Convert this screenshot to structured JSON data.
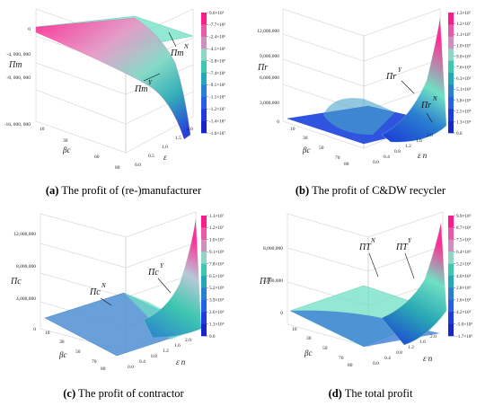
{
  "chart_data": [
    {
      "type": "surface3d",
      "panel_letter": "(a)",
      "caption": "The profit of (re-)manufacturer",
      "z_axis_label": "Πm",
      "x_axis_label": "βc",
      "y_axis_label": "ε",
      "z_ticks": [
        "0",
        "-4, 000, 000",
        "-8, 000, 000",
        "-16, 000, 000"
      ],
      "x_ticks": [
        "10",
        "20",
        "30",
        "40",
        "50",
        "60",
        "70",
        "80"
      ],
      "y_ticks": [
        "0.0",
        "0.5",
        "1.0",
        "1.5",
        "2.0"
      ],
      "colorbar": {
        "ticks": [
          "9.0×10⁵",
          "-7.7×10⁵",
          "-2.4×10⁶",
          "-4.1×10⁶",
          "-5.8×10⁶",
          "-7.4×10⁶",
          "-9.1×10⁶",
          "-1.1×10⁷",
          "-1.2×10⁷",
          "-1.4×10⁷",
          "-1.6×10⁷"
        ],
        "colors_top_to_bottom": [
          "#ff1a8c",
          "#e85aa6",
          "#cf8fbf",
          "#8fd6c6",
          "#3ec7b0",
          "#24a7b8",
          "#2a7fd0",
          "#2b5ee6",
          "#1f3be0",
          "#1726c8"
        ]
      },
      "annotations": [
        {
          "label": "Πm",
          "superscript": "N"
        },
        {
          "label": "Πm",
          "superscript": "Y"
        }
      ]
    },
    {
      "type": "surface3d",
      "panel_letter": "(b)",
      "caption": "The profit of C&DW recycler",
      "z_axis_label": "Πr",
      "x_axis_label": "βc",
      "y_axis_label": "ε n",
      "z_ticks": [
        "12,000,000",
        "9,000,000",
        "6,000,000",
        "3,000,000",
        "0"
      ],
      "x_ticks": [
        "10",
        "20",
        "30",
        "40",
        "50",
        "60",
        "70",
        "80"
      ],
      "y_ticks": [
        "0.0",
        "0.2",
        "0.4",
        "0.6",
        "0.8",
        "1.0",
        "1.2",
        "1.4",
        "1.6",
        "1.8",
        "2.0"
      ],
      "colorbar": {
        "ticks": [
          "1.3×10⁷",
          "1.2×10⁷",
          "1.1×10⁷",
          "1.0×10⁷",
          "9.0×10⁶",
          "7.6×10⁶",
          "6.3×10⁶",
          "5.1×10⁶",
          "3.8×10⁶",
          "2.5×10⁶",
          "1.3×10⁶",
          "0.0"
        ],
        "colors_top_to_bottom": [
          "#ff1a8c",
          "#e85aa6",
          "#cf8fbf",
          "#8fd6c6",
          "#3ec7b0",
          "#24a7b8",
          "#2a7fd0",
          "#2b5ee6",
          "#1f3be0",
          "#1726c8"
        ]
      },
      "annotations": [
        {
          "label": "Πr",
          "superscript": "Y"
        },
        {
          "label": "Πr",
          "superscript": "N"
        }
      ]
    },
    {
      "type": "surface3d",
      "panel_letter": "(c)",
      "caption": "The profit of contractor",
      "z_axis_label": "Πc",
      "x_axis_label": "βc",
      "y_axis_label": "ε n",
      "z_ticks": [
        "12,000,000",
        "8,000,000",
        "4,000,000",
        "0"
      ],
      "x_ticks": [
        "10",
        "20",
        "30",
        "40",
        "50",
        "60",
        "70",
        "80"
      ],
      "y_ticks": [
        "0.0",
        "0.2",
        "0.4",
        "0.6",
        "0.8",
        "1.0",
        "1.2",
        "1.4",
        "1.6",
        "1.8",
        "2.0"
      ],
      "colorbar": {
        "ticks": [
          "1.3×10⁷",
          "1.2×10⁷",
          "1.0×10⁷",
          "9.1×10⁶",
          "7.8×10⁶",
          "6.5×10⁶",
          "5.2×10⁶",
          "3.9×10⁶",
          "2.6×10⁶",
          "1.3×10⁶",
          "0.0"
        ],
        "colors_top_to_bottom": [
          "#ff1a8c",
          "#e85aa6",
          "#cf8fbf",
          "#8fd6c6",
          "#3ec7b0",
          "#24a7b8",
          "#2a7fd0",
          "#2b5ee6",
          "#1f3be0",
          "#1726c8"
        ]
      },
      "annotations": [
        {
          "label": "Πc",
          "superscript": "N"
        },
        {
          "label": "Πc",
          "superscript": "Y"
        }
      ]
    },
    {
      "type": "surface3d",
      "panel_letter": "(d)",
      "caption": "The total profit",
      "z_axis_label": "ΠT",
      "x_axis_label": "βc",
      "y_axis_label": "ε n",
      "z_ticks": [
        "8,000,000",
        "4,000,000",
        "0"
      ],
      "x_ticks": [
        "10",
        "20",
        "30",
        "40",
        "50",
        "60",
        "70",
        "80"
      ],
      "y_ticks": [
        "0.0",
        "0.2",
        "0.4",
        "0.6",
        "0.8",
        "1.0",
        "1.2",
        "1.4",
        "1.6",
        "1.8",
        "2.0"
      ],
      "colorbar": {
        "ticks": [
          "9.9×10⁶",
          "8.7×10⁶",
          "7.5×10⁶",
          "6.4×10⁶",
          "5.2×10⁶",
          "4.0×10⁶",
          "2.8×10⁶",
          "1.6×10⁶",
          "4.2×10⁵",
          "-5.0×10⁵",
          "-1.7×10⁶"
        ],
        "colors_top_to_bottom": [
          "#ff1a8c",
          "#e85aa6",
          "#cf8fbf",
          "#8fd6c6",
          "#3ec7b0",
          "#24a7b8",
          "#2a7fd0",
          "#2b5ee6",
          "#1f3be0",
          "#1726c8"
        ]
      },
      "annotations": [
        {
          "label": "ΠT",
          "superscript": "N"
        },
        {
          "label": "ΠT",
          "superscript": "Y"
        }
      ]
    }
  ]
}
